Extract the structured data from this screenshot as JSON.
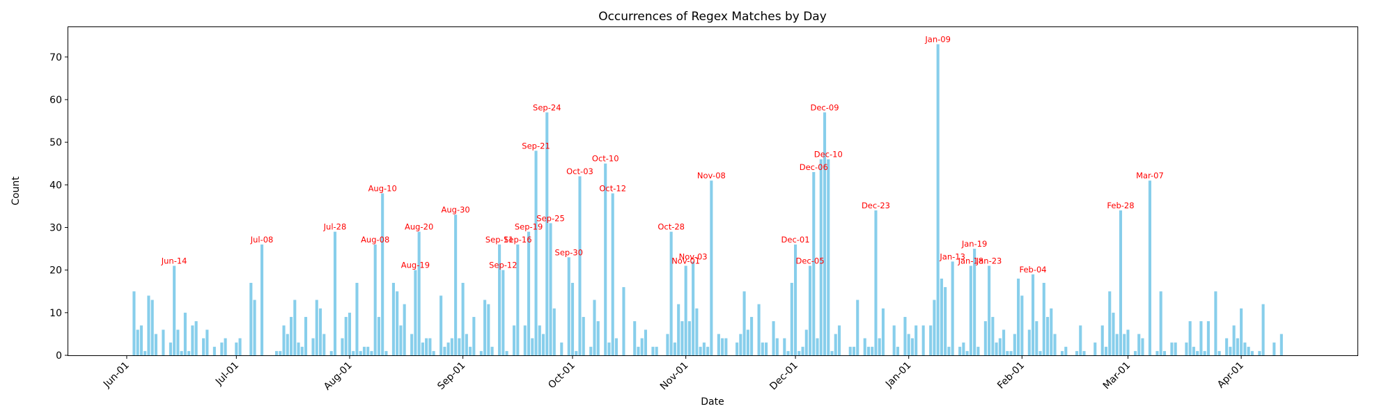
{
  "chart_data": {
    "type": "bar",
    "title": "Occurrences of Regex Matches by Day",
    "xlabel": "Date",
    "ylabel": "Count",
    "x_range": [
      "2023-05-16",
      "2024-05-03"
    ],
    "ylim": [
      0,
      77
    ],
    "y_ticks": [
      0,
      10,
      20,
      30,
      40,
      50,
      60,
      70
    ],
    "x_ticks": [
      {
        "date": "2023-06-01",
        "label": "Jun-01"
      },
      {
        "date": "2023-07-01",
        "label": "Jul-01"
      },
      {
        "date": "2023-08-01",
        "label": "Aug-01"
      },
      {
        "date": "2023-09-01",
        "label": "Sep-01"
      },
      {
        "date": "2023-10-01",
        "label": "Oct-01"
      },
      {
        "date": "2023-11-01",
        "label": "Nov-01"
      },
      {
        "date": "2023-12-01",
        "label": "Dec-01"
      },
      {
        "date": "2024-01-01",
        "label": "Jan-01"
      },
      {
        "date": "2024-02-01",
        "label": "Feb-01"
      },
      {
        "date": "2024-03-01",
        "label": "Mar-01"
      },
      {
        "date": "2024-04-01",
        "label": "Apr-01"
      }
    ],
    "bar_color": "#87ceeb",
    "label_color": "#ff0000",
    "grid": false,
    "points": [
      [
        "2023-06-03",
        15
      ],
      [
        "2023-06-04",
        6
      ],
      [
        "2023-06-05",
        7
      ],
      [
        "2023-06-06",
        1
      ],
      [
        "2023-06-07",
        14
      ],
      [
        "2023-06-08",
        13
      ],
      [
        "2023-06-09",
        5
      ],
      [
        "2023-06-11",
        6
      ],
      [
        "2023-06-13",
        3
      ],
      [
        "2023-06-14",
        21
      ],
      [
        "2023-06-15",
        6
      ],
      [
        "2023-06-16",
        1
      ],
      [
        "2023-06-17",
        10
      ],
      [
        "2023-06-18",
        1
      ],
      [
        "2023-06-19",
        7
      ],
      [
        "2023-06-20",
        8
      ],
      [
        "2023-06-22",
        4
      ],
      [
        "2023-06-23",
        6
      ],
      [
        "2023-06-25",
        2
      ],
      [
        "2023-06-27",
        3
      ],
      [
        "2023-06-28",
        4
      ],
      [
        "2023-07-01",
        3
      ],
      [
        "2023-07-02",
        4
      ],
      [
        "2023-07-05",
        17
      ],
      [
        "2023-07-06",
        13
      ],
      [
        "2023-07-08",
        26
      ],
      [
        "2023-07-12",
        1
      ],
      [
        "2023-07-13",
        1
      ],
      [
        "2023-07-14",
        7
      ],
      [
        "2023-07-15",
        5
      ],
      [
        "2023-07-16",
        9
      ],
      [
        "2023-07-17",
        13
      ],
      [
        "2023-07-18",
        3
      ],
      [
        "2023-07-19",
        2
      ],
      [
        "2023-07-20",
        9
      ],
      [
        "2023-07-22",
        4
      ],
      [
        "2023-07-23",
        13
      ],
      [
        "2023-07-24",
        11
      ],
      [
        "2023-07-25",
        5
      ],
      [
        "2023-07-27",
        1
      ],
      [
        "2023-07-28",
        29
      ],
      [
        "2023-07-30",
        4
      ],
      [
        "2023-07-31",
        9
      ],
      [
        "2023-08-01",
        10
      ],
      [
        "2023-08-02",
        1
      ],
      [
        "2023-08-03",
        17
      ],
      [
        "2023-08-04",
        1
      ],
      [
        "2023-08-05",
        2
      ],
      [
        "2023-08-06",
        2
      ],
      [
        "2023-08-07",
        1
      ],
      [
        "2023-08-08",
        26
      ],
      [
        "2023-08-09",
        9
      ],
      [
        "2023-08-10",
        38
      ],
      [
        "2023-08-11",
        1
      ],
      [
        "2023-08-13",
        17
      ],
      [
        "2023-08-14",
        15
      ],
      [
        "2023-08-15",
        7
      ],
      [
        "2023-08-16",
        12
      ],
      [
        "2023-08-18",
        5
      ],
      [
        "2023-08-19",
        20
      ],
      [
        "2023-08-20",
        29
      ],
      [
        "2023-08-21",
        3
      ],
      [
        "2023-08-22",
        4
      ],
      [
        "2023-08-23",
        4
      ],
      [
        "2023-08-24",
        1
      ],
      [
        "2023-08-26",
        14
      ],
      [
        "2023-08-27",
        2
      ],
      [
        "2023-08-28",
        3
      ],
      [
        "2023-08-29",
        4
      ],
      [
        "2023-08-30",
        33
      ],
      [
        "2023-08-31",
        4
      ],
      [
        "2023-09-01",
        17
      ],
      [
        "2023-09-02",
        5
      ],
      [
        "2023-09-03",
        2
      ],
      [
        "2023-09-04",
        9
      ],
      [
        "2023-09-06",
        1
      ],
      [
        "2023-09-07",
        13
      ],
      [
        "2023-09-08",
        12
      ],
      [
        "2023-09-09",
        2
      ],
      [
        "2023-09-11",
        26
      ],
      [
        "2023-09-12",
        20
      ],
      [
        "2023-09-13",
        1
      ],
      [
        "2023-09-15",
        7
      ],
      [
        "2023-09-16",
        26
      ],
      [
        "2023-09-18",
        7
      ],
      [
        "2023-09-19",
        29
      ],
      [
        "2023-09-20",
        4
      ],
      [
        "2023-09-21",
        48
      ],
      [
        "2023-09-22",
        7
      ],
      [
        "2023-09-23",
        5
      ],
      [
        "2023-09-24",
        57
      ],
      [
        "2023-09-25",
        31
      ],
      [
        "2023-09-26",
        11
      ],
      [
        "2023-09-28",
        3
      ],
      [
        "2023-09-30",
        23
      ],
      [
        "2023-10-01",
        17
      ],
      [
        "2023-10-02",
        1
      ],
      [
        "2023-10-03",
        42
      ],
      [
        "2023-10-04",
        9
      ],
      [
        "2023-10-06",
        2
      ],
      [
        "2023-10-07",
        13
      ],
      [
        "2023-10-08",
        8
      ],
      [
        "2023-10-10",
        45
      ],
      [
        "2023-10-11",
        3
      ],
      [
        "2023-10-12",
        38
      ],
      [
        "2023-10-13",
        4
      ],
      [
        "2023-10-15",
        16
      ],
      [
        "2023-10-18",
        8
      ],
      [
        "2023-10-19",
        2
      ],
      [
        "2023-10-20",
        4
      ],
      [
        "2023-10-21",
        6
      ],
      [
        "2023-10-23",
        2
      ],
      [
        "2023-10-24",
        2
      ],
      [
        "2023-10-27",
        5
      ],
      [
        "2023-10-28",
        29
      ],
      [
        "2023-10-29",
        3
      ],
      [
        "2023-10-30",
        12
      ],
      [
        "2023-10-31",
        8
      ],
      [
        "2023-11-01",
        21
      ],
      [
        "2023-11-02",
        8
      ],
      [
        "2023-11-03",
        22
      ],
      [
        "2023-11-04",
        11
      ],
      [
        "2023-11-05",
        2
      ],
      [
        "2023-11-06",
        3
      ],
      [
        "2023-11-07",
        2
      ],
      [
        "2023-11-08",
        41
      ],
      [
        "2023-11-10",
        5
      ],
      [
        "2023-11-11",
        4
      ],
      [
        "2023-11-12",
        4
      ],
      [
        "2023-11-15",
        3
      ],
      [
        "2023-11-16",
        5
      ],
      [
        "2023-11-17",
        15
      ],
      [
        "2023-11-18",
        6
      ],
      [
        "2023-11-19",
        9
      ],
      [
        "2023-11-21",
        12
      ],
      [
        "2023-11-22",
        3
      ],
      [
        "2023-11-23",
        3
      ],
      [
        "2023-11-25",
        8
      ],
      [
        "2023-11-26",
        4
      ],
      [
        "2023-11-28",
        4
      ],
      [
        "2023-11-29",
        1
      ],
      [
        "2023-11-30",
        17
      ],
      [
        "2023-12-01",
        26
      ],
      [
        "2023-12-02",
        1
      ],
      [
        "2023-12-03",
        2
      ],
      [
        "2023-12-04",
        6
      ],
      [
        "2023-12-05",
        21
      ],
      [
        "2023-12-06",
        43
      ],
      [
        "2023-12-07",
        4
      ],
      [
        "2023-12-08",
        46
      ],
      [
        "2023-12-09",
        57
      ],
      [
        "2023-12-10",
        46
      ],
      [
        "2023-12-11",
        1
      ],
      [
        "2023-12-12",
        5
      ],
      [
        "2023-12-13",
        7
      ],
      [
        "2023-12-16",
        2
      ],
      [
        "2023-12-17",
        2
      ],
      [
        "2023-12-18",
        13
      ],
      [
        "2023-12-20",
        4
      ],
      [
        "2023-12-21",
        2
      ],
      [
        "2023-12-22",
        2
      ],
      [
        "2023-12-23",
        34
      ],
      [
        "2023-12-24",
        4
      ],
      [
        "2023-12-25",
        11
      ],
      [
        "2023-12-28",
        7
      ],
      [
        "2023-12-29",
        2
      ],
      [
        "2023-12-31",
        9
      ],
      [
        "2024-01-01",
        5
      ],
      [
        "2024-01-02",
        4
      ],
      [
        "2024-01-03",
        7
      ],
      [
        "2024-01-05",
        7
      ],
      [
        "2024-01-07",
        7
      ],
      [
        "2024-01-08",
        13
      ],
      [
        "2024-01-09",
        73
      ],
      [
        "2024-01-10",
        18
      ],
      [
        "2024-01-11",
        16
      ],
      [
        "2024-01-12",
        2
      ],
      [
        "2024-01-13",
        22
      ],
      [
        "2024-01-15",
        2
      ],
      [
        "2024-01-16",
        3
      ],
      [
        "2024-01-17",
        1
      ],
      [
        "2024-01-18",
        21
      ],
      [
        "2024-01-19",
        25
      ],
      [
        "2024-01-20",
        2
      ],
      [
        "2024-01-22",
        8
      ],
      [
        "2024-01-23",
        21
      ],
      [
        "2024-01-24",
        9
      ],
      [
        "2024-01-25",
        3
      ],
      [
        "2024-01-26",
        4
      ],
      [
        "2024-01-27",
        6
      ],
      [
        "2024-01-28",
        1
      ],
      [
        "2024-01-29",
        1
      ],
      [
        "2024-01-30",
        5
      ],
      [
        "2024-01-31",
        18
      ],
      [
        "2024-02-01",
        14
      ],
      [
        "2024-02-03",
        6
      ],
      [
        "2024-02-04",
        19
      ],
      [
        "2024-02-05",
        8
      ],
      [
        "2024-02-06",
        1
      ],
      [
        "2024-02-07",
        17
      ],
      [
        "2024-02-08",
        9
      ],
      [
        "2024-02-09",
        11
      ],
      [
        "2024-02-10",
        5
      ],
      [
        "2024-02-12",
        1
      ],
      [
        "2024-02-13",
        2
      ],
      [
        "2024-02-16",
        1
      ],
      [
        "2024-02-17",
        7
      ],
      [
        "2024-02-18",
        1
      ],
      [
        "2024-02-21",
        3
      ],
      [
        "2024-02-23",
        7
      ],
      [
        "2024-02-24",
        2
      ],
      [
        "2024-02-25",
        15
      ],
      [
        "2024-02-26",
        10
      ],
      [
        "2024-02-27",
        5
      ],
      [
        "2024-02-28",
        34
      ],
      [
        "2024-02-29",
        5
      ],
      [
        "2024-03-01",
        6
      ],
      [
        "2024-03-03",
        1
      ],
      [
        "2024-03-04",
        5
      ],
      [
        "2024-03-05",
        4
      ],
      [
        "2024-03-07",
        41
      ],
      [
        "2024-03-09",
        1
      ],
      [
        "2024-03-10",
        15
      ],
      [
        "2024-03-11",
        1
      ],
      [
        "2024-03-13",
        3
      ],
      [
        "2024-03-14",
        3
      ],
      [
        "2024-03-17",
        3
      ],
      [
        "2024-03-18",
        8
      ],
      [
        "2024-03-19",
        2
      ],
      [
        "2024-03-20",
        1
      ],
      [
        "2024-03-21",
        8
      ],
      [
        "2024-03-22",
        1
      ],
      [
        "2024-03-23",
        8
      ],
      [
        "2024-03-25",
        15
      ],
      [
        "2024-03-26",
        1
      ],
      [
        "2024-03-28",
        4
      ],
      [
        "2024-03-29",
        2
      ],
      [
        "2024-03-30",
        7
      ],
      [
        "2024-03-31",
        4
      ],
      [
        "2024-04-01",
        11
      ],
      [
        "2024-04-02",
        3
      ],
      [
        "2024-04-03",
        2
      ],
      [
        "2024-04-04",
        1
      ],
      [
        "2024-04-06",
        1
      ],
      [
        "2024-04-07",
        12
      ],
      [
        "2024-04-10",
        3
      ],
      [
        "2024-04-12",
        5
      ]
    ],
    "annotations": [
      {
        "date": "2023-06-14",
        "value": 21,
        "label": "Jun-14"
      },
      {
        "date": "2023-07-08",
        "value": 26,
        "label": "Jul-08"
      },
      {
        "date": "2023-07-28",
        "value": 29,
        "label": "Jul-28"
      },
      {
        "date": "2023-08-08",
        "value": 26,
        "label": "Aug-08"
      },
      {
        "date": "2023-08-10",
        "value": 38,
        "label": "Aug-10"
      },
      {
        "date": "2023-08-19",
        "value": 20,
        "label": "Aug-19"
      },
      {
        "date": "2023-08-20",
        "value": 29,
        "label": "Aug-20"
      },
      {
        "date": "2023-08-30",
        "value": 33,
        "label": "Aug-30"
      },
      {
        "date": "2023-09-11",
        "value": 26,
        "label": "Sep-11"
      },
      {
        "date": "2023-09-12",
        "value": 20,
        "label": "Sep-12"
      },
      {
        "date": "2023-09-16",
        "value": 26,
        "label": "Sep-16"
      },
      {
        "date": "2023-09-19",
        "value": 29,
        "label": "Sep-19"
      },
      {
        "date": "2023-09-21",
        "value": 48,
        "label": "Sep-21"
      },
      {
        "date": "2023-09-24",
        "value": 57,
        "label": "Sep-24"
      },
      {
        "date": "2023-09-25",
        "value": 31,
        "label": "Sep-25"
      },
      {
        "date": "2023-09-30",
        "value": 23,
        "label": "Sep-30"
      },
      {
        "date": "2023-10-03",
        "value": 42,
        "label": "Oct-03"
      },
      {
        "date": "2023-10-10",
        "value": 45,
        "label": "Oct-10"
      },
      {
        "date": "2023-10-12",
        "value": 38,
        "label": "Oct-12"
      },
      {
        "date": "2023-10-28",
        "value": 29,
        "label": "Oct-28"
      },
      {
        "date": "2023-11-01",
        "value": 21,
        "label": "Nov-01"
      },
      {
        "date": "2023-11-03",
        "value": 22,
        "label": "Nov-03"
      },
      {
        "date": "2023-11-08",
        "value": 41,
        "label": "Nov-08"
      },
      {
        "date": "2023-12-01",
        "value": 26,
        "label": "Dec-01"
      },
      {
        "date": "2023-12-05",
        "value": 21,
        "label": "Dec-05"
      },
      {
        "date": "2023-12-06",
        "value": 43,
        "label": "Dec-06"
      },
      {
        "date": "2023-12-09",
        "value": 57,
        "label": "Dec-09"
      },
      {
        "date": "2023-12-10",
        "value": 46,
        "label": "Dec-10"
      },
      {
        "date": "2023-12-23",
        "value": 34,
        "label": "Dec-23"
      },
      {
        "date": "2024-01-09",
        "value": 73,
        "label": "Jan-09"
      },
      {
        "date": "2024-01-13",
        "value": 22,
        "label": "Jan-13"
      },
      {
        "date": "2024-01-18",
        "value": 21,
        "label": "Jan-18"
      },
      {
        "date": "2024-01-19",
        "value": 25,
        "label": "Jan-19"
      },
      {
        "date": "2024-01-23",
        "value": 21,
        "label": "Jan-23"
      },
      {
        "date": "2024-02-04",
        "value": 19,
        "label": "Feb-04"
      },
      {
        "date": "2024-02-28",
        "value": 34,
        "label": "Feb-28"
      },
      {
        "date": "2024-03-07",
        "value": 41,
        "label": "Mar-07"
      }
    ]
  }
}
